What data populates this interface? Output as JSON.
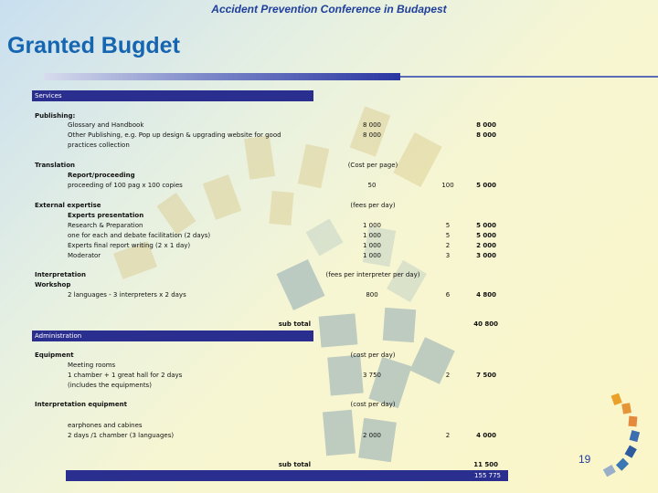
{
  "header": {
    "conference": "Accident Prevention Conference in Budapest",
    "title": "Granted Bugdet"
  },
  "table": {
    "services_label": "Services",
    "publishing": {
      "label": "Publishing:",
      "items": [
        {
          "desc": "Glossary and Handbook",
          "qty": "8 000",
          "amount": "8 000"
        },
        {
          "desc": "Other Publishing, e.g. Pop up design & upgrading website for good",
          "qty": "8 000",
          "amount": "8 000"
        }
      ],
      "continuation": "practices collection"
    },
    "translation": {
      "label": "Translation",
      "unit_note": "(Cost per page)",
      "sub": "Report/proceeding",
      "item": {
        "desc": "proceeding of 100 pag x 100 copies",
        "qty": "50",
        "unit": "100",
        "amount": "5 000"
      }
    },
    "expertise": {
      "label": "External expertise",
      "unit_note": "(fees per day)",
      "sub": "Experts presentation",
      "items": [
        {
          "desc": "Research & Preparation",
          "qty": "1 000",
          "unit": "5",
          "amount": "5 000"
        },
        {
          "desc": "one for each and debate facilitation (2 days)",
          "qty": "1 000",
          "unit": "5",
          "amount": "5 000"
        },
        {
          "desc": "Experts final report writing (2 x 1 day)",
          "qty": "1 000",
          "unit": "2",
          "amount": "2 000"
        },
        {
          "desc": "Moderator",
          "qty": "1 000",
          "unit": "3",
          "amount": "3 000"
        }
      ]
    },
    "interpretation": {
      "label": "Interpretation",
      "unit_note": "(fees per interpreter per day)",
      "workshop": "Workshop",
      "item": {
        "desc": "2 languages - 3 interpreters x 2 days",
        "qty": "800",
        "unit": "6",
        "amount": "4 800"
      }
    },
    "subtotal1": {
      "label": "sub total",
      "amount": "40 800"
    },
    "administration_label": "Administration",
    "equipment": {
      "label": "Equipment",
      "unit_note": "(cost per day)",
      "sub": "Meeting rooms",
      "item": {
        "desc": "1 chamber + 1 great hall for 2 days",
        "qty": "3 750",
        "unit": "2",
        "amount": "7 500"
      },
      "note": "(includes the equipments)"
    },
    "interp_equipment": {
      "label": "Interpretation equipment",
      "unit_note": "(cost per day)",
      "sub": "earphones and cabines",
      "item": {
        "desc": "2 days /1 chamber (3 languages)",
        "qty": "2 000",
        "unit": "2",
        "amount": "4 000"
      }
    },
    "subtotal2": {
      "label": "sub total",
      "amount": "11 500"
    },
    "total": {
      "amount": "155 775"
    }
  },
  "page_number": "19",
  "colors": {
    "title": "#1565b0",
    "header": "#1f3f9c",
    "band": "#2a2e8f"
  }
}
